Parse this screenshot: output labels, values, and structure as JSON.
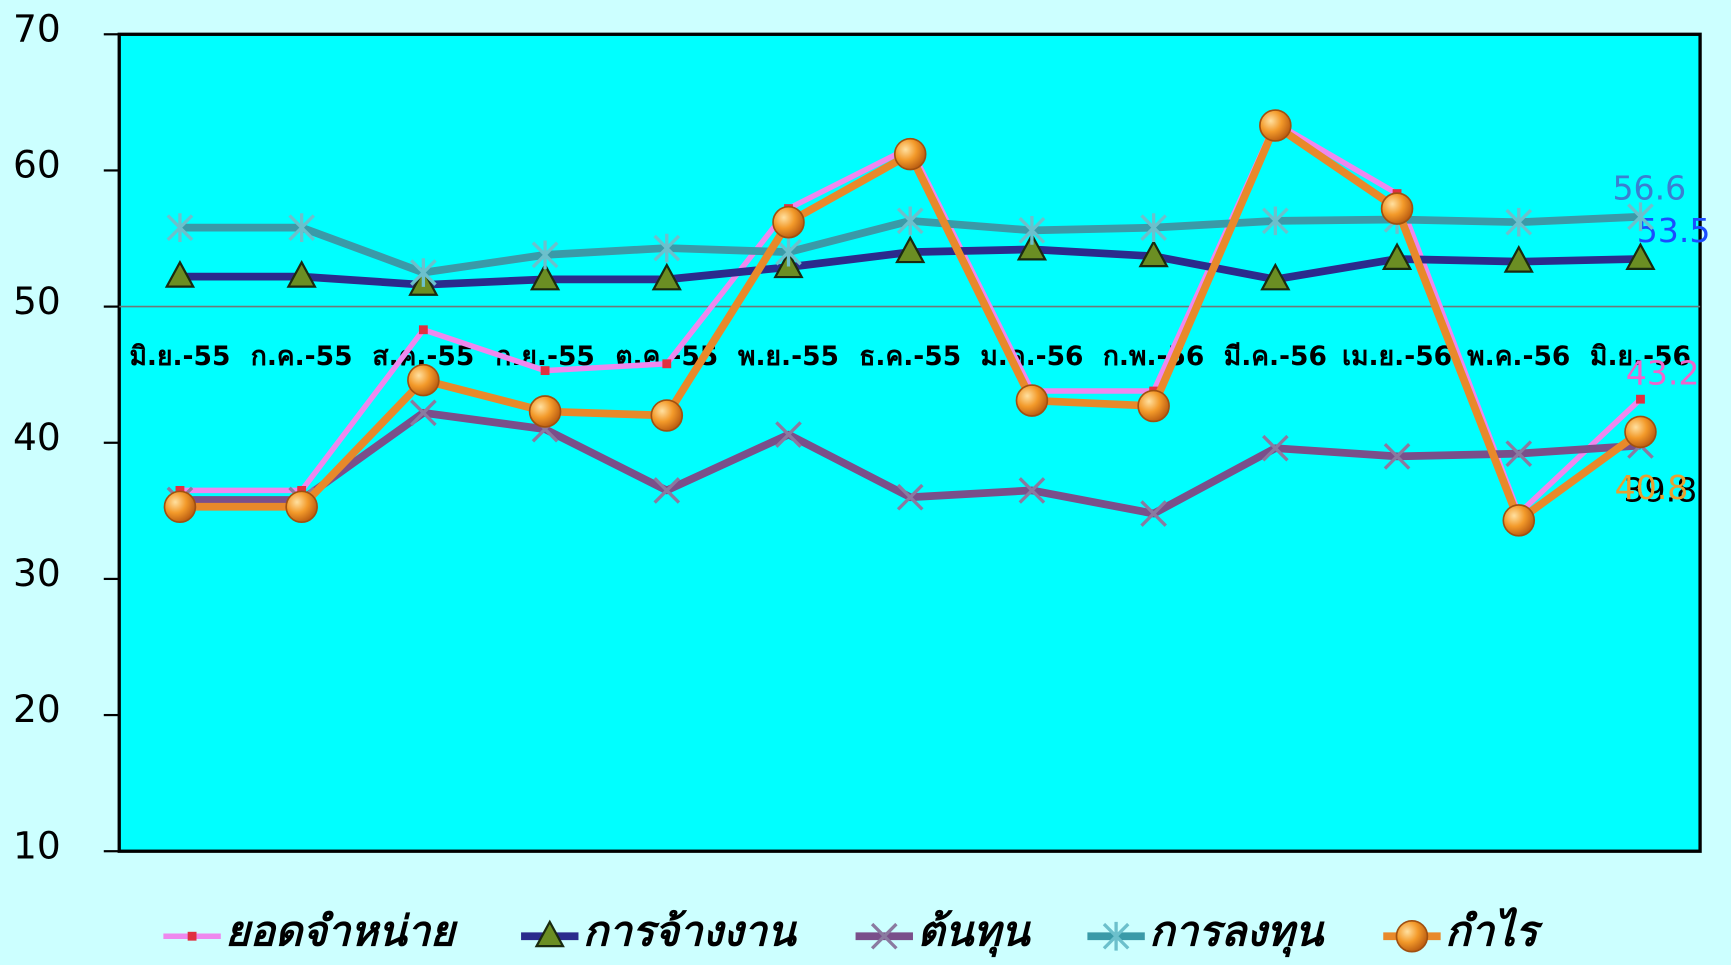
{
  "chart_data": {
    "type": "line",
    "categories": [
      "มิ.ย.-55",
      "ก.ค.-55",
      "ส.ค.-55",
      "ก.ย.-55",
      "ต.ค.-55",
      "พ.ย.-55",
      "ธ.ค.-55",
      "ม.ค.-56",
      "ก.พ.-56",
      "มี.ค.-56",
      "เม.ย.-56",
      "พ.ค.-56",
      "มิ.ย.-56"
    ],
    "series": [
      {
        "name": "ยอดจำหน่าย",
        "color": "#ee88ee",
        "marker": "square",
        "marker_color": "#e03040",
        "label_color": "#ee66cc",
        "values": [
          36.5,
          36.5,
          48.3,
          45.3,
          45.8,
          57.2,
          61.7,
          43.8,
          43.8,
          63.5,
          58.3,
          34.8,
          43.2
        ]
      },
      {
        "name": "การจ้างงาน",
        "color": "#2b2b8c",
        "marker": "triangle",
        "marker_color": "#6b8e23",
        "label_color": "#1a4cff",
        "values": [
          52.2,
          52.2,
          51.6,
          52.0,
          52.0,
          52.9,
          54.0,
          54.2,
          53.7,
          52.0,
          53.5,
          53.3,
          53.5
        ]
      },
      {
        "name": "ต้นทุน",
        "color": "#7a4f8a",
        "marker": "x",
        "marker_color": "#8a7aa0",
        "label_color": "#000000",
        "values": [
          35.8,
          35.8,
          42.2,
          41.0,
          36.5,
          40.6,
          36.0,
          36.5,
          34.8,
          39.6,
          39.0,
          39.2,
          39.8
        ]
      },
      {
        "name": "การลงทุน",
        "color": "#3a9aa8",
        "marker": "star",
        "marker_color": "#6cc0cc",
        "label_color": "#3a7fd0",
        "values": [
          55.8,
          55.8,
          52.5,
          53.8,
          54.3,
          54.0,
          56.3,
          55.6,
          55.8,
          56.3,
          56.4,
          56.2,
          56.6
        ]
      },
      {
        "name": "กำไร",
        "color": "#e8892a",
        "marker": "circle",
        "marker_color": "#f39a2a",
        "label_color": "#e8a030",
        "values": [
          35.3,
          35.3,
          44.6,
          42.3,
          42.0,
          56.2,
          61.2,
          43.1,
          42.7,
          63.3,
          57.2,
          34.3,
          40.8
        ]
      }
    ],
    "ylim": [
      10,
      70
    ],
    "yticks": [
      10,
      20,
      30,
      40,
      50,
      60,
      70
    ],
    "grid": true,
    "category_axis_at": 50,
    "legend": "bottom"
  }
}
